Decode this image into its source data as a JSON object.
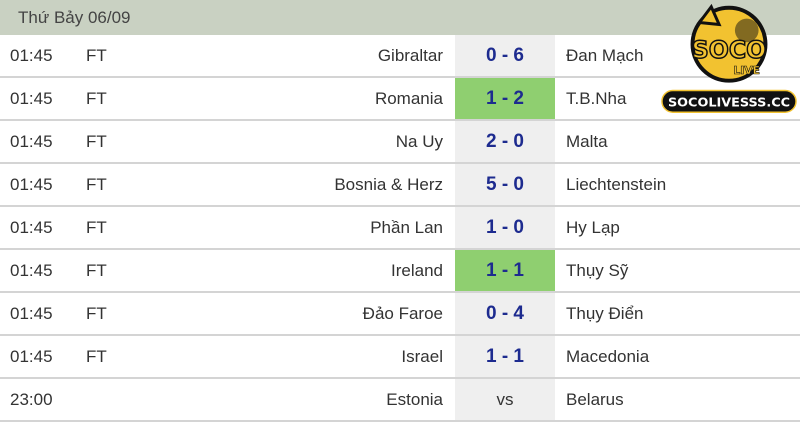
{
  "header": {
    "date": "Thứ Bảy 06/09"
  },
  "logo": {
    "brand": "SOCO LIVE",
    "site": "SOCOLIVESSS.CC",
    "colors": {
      "yellow": "#f2c230",
      "black": "#111111"
    }
  },
  "colors": {
    "header_bg": "#c9d1c2",
    "highlight": "#8fcf70",
    "score_text": "#1d2b8f",
    "score_bg": "#efefef"
  },
  "matches": [
    {
      "time": "01:45",
      "status": "FT",
      "home": "Gibraltar",
      "score": "0 - 6",
      "away": "Đan Mạch",
      "highlight": false
    },
    {
      "time": "01:45",
      "status": "FT",
      "home": "Romania",
      "score": "1 - 2",
      "away": "T.B.Nha",
      "highlight": true
    },
    {
      "time": "01:45",
      "status": "FT",
      "home": "Na Uy",
      "score": "2 - 0",
      "away": "Malta",
      "highlight": false
    },
    {
      "time": "01:45",
      "status": "FT",
      "home": "Bosnia & Herz",
      "score": "5 - 0",
      "away": "Liechtenstein",
      "highlight": false
    },
    {
      "time": "01:45",
      "status": "FT",
      "home": "Phần Lan",
      "score": "1 - 0",
      "away": "Hy Lạp",
      "highlight": false
    },
    {
      "time": "01:45",
      "status": "FT",
      "home": "Ireland",
      "score": "1 - 1",
      "away": "Thụy Sỹ",
      "highlight": true
    },
    {
      "time": "01:45",
      "status": "FT",
      "home": "Đảo Faroe",
      "score": "0 - 4",
      "away": "Thụy Điển",
      "highlight": false
    },
    {
      "time": "01:45",
      "status": "FT",
      "home": "Israel",
      "score": "1 - 1",
      "away": "Macedonia",
      "highlight": false
    },
    {
      "time": "23:00",
      "status": "",
      "home": "Estonia",
      "score": "vs",
      "away": "Belarus",
      "highlight": false
    }
  ]
}
